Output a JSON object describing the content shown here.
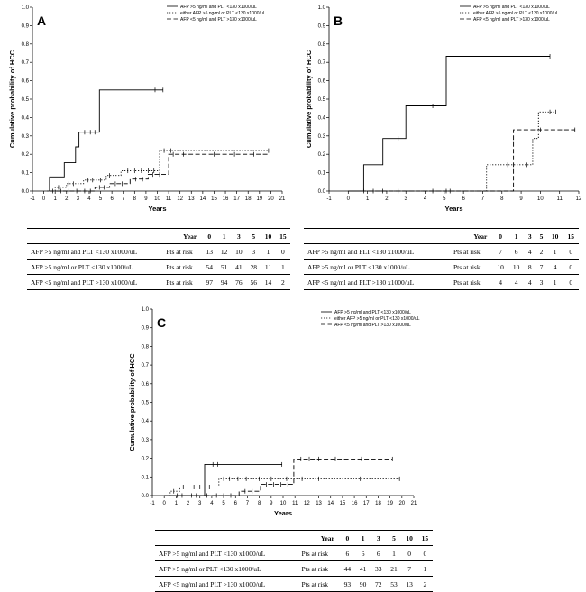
{
  "legend": [
    "AFP >5 ng/ml and PLT <130 x1000/uL",
    "either AFP >5 ng/ml or PLT <130 x1000/uL",
    "AFP <5 ng/ml and PLT >130 x1000/uL"
  ],
  "risk_labels": {
    "year": "Year",
    "pts": "Pts at risk"
  },
  "chart_data": [
    {
      "id": "A",
      "type": "line",
      "title": "A",
      "ylabel": "Cumulative probability of HCC",
      "xlabel": "Years",
      "xlim": [
        -1,
        21
      ],
      "ylim": [
        0,
        1
      ],
      "xticks": [
        -1,
        0,
        1,
        2,
        3,
        4,
        5,
        6,
        7,
        8,
        9,
        10,
        11,
        12,
        13,
        14,
        15,
        16,
        17,
        18,
        19,
        20,
        21
      ],
      "yticks": [
        "0.0",
        "0.1",
        "0.2",
        "0.3",
        "0.4",
        "0.5",
        "0.6",
        "0.7",
        "0.8",
        "0.9",
        "1.0"
      ],
      "series": [
        {
          "name": "AFP >5 ng/ml and PLT <130 x1000/uL",
          "style": "solid",
          "steps": [
            [
              0.5,
              0
            ],
            [
              0.5,
              0.077
            ],
            [
              1.8,
              0.077
            ],
            [
              1.8,
              0.154
            ],
            [
              2.8,
              0.154
            ],
            [
              2.8,
              0.24
            ],
            [
              3.1,
              0.24
            ],
            [
              3.1,
              0.32
            ],
            [
              4.9,
              0.32
            ],
            [
              4.9,
              0.55
            ],
            [
              10.5,
              0.55
            ]
          ],
          "censor": [
            [
              3.6,
              0.32
            ],
            [
              4.1,
              0.32
            ],
            [
              4.5,
              0.32
            ],
            [
              9.8,
              0.55
            ],
            [
              10.5,
              0.55
            ]
          ]
        },
        {
          "name": "either AFP >5 ng/ml or PLT <130 x1000/uL",
          "style": "dotted",
          "steps": [
            [
              0.3,
              0
            ],
            [
              1.0,
              0
            ],
            [
              1.0,
              0.02
            ],
            [
              2.0,
              0.02
            ],
            [
              2.0,
              0.04
            ],
            [
              3.5,
              0.04
            ],
            [
              3.5,
              0.06
            ],
            [
              5.5,
              0.06
            ],
            [
              5.5,
              0.085
            ],
            [
              6.8,
              0.085
            ],
            [
              6.8,
              0.11
            ],
            [
              10.2,
              0.11
            ],
            [
              10.2,
              0.22
            ],
            [
              19.8,
              0.22
            ]
          ],
          "censor": [
            [
              1.3,
              0.02
            ],
            [
              2.2,
              0.04
            ],
            [
              2.6,
              0.04
            ],
            [
              3.9,
              0.06
            ],
            [
              4.3,
              0.06
            ],
            [
              4.6,
              0.06
            ],
            [
              5.0,
              0.06
            ],
            [
              5.8,
              0.085
            ],
            [
              6.2,
              0.085
            ],
            [
              7.4,
              0.11
            ],
            [
              8.0,
              0.11
            ],
            [
              8.6,
              0.11
            ],
            [
              9.2,
              0.11
            ],
            [
              9.7,
              0.11
            ],
            [
              10.6,
              0.22
            ],
            [
              11.2,
              0.22
            ],
            [
              19.8,
              0.22
            ]
          ]
        },
        {
          "name": "AFP <5 ng/ml and PLT >130 x1000/uL",
          "style": "dashed",
          "steps": [
            [
              0.5,
              0
            ],
            [
              4.5,
              0
            ],
            [
              4.5,
              0.02
            ],
            [
              5.8,
              0.02
            ],
            [
              5.8,
              0.04
            ],
            [
              7.6,
              0.04
            ],
            [
              7.6,
              0.065
            ],
            [
              9.2,
              0.065
            ],
            [
              9.2,
              0.09
            ],
            [
              11.0,
              0.09
            ],
            [
              11.0,
              0.2
            ],
            [
              19.8,
              0.2
            ]
          ],
          "censor": [
            [
              0.8,
              0
            ],
            [
              1.5,
              0
            ],
            [
              2.2,
              0
            ],
            [
              2.9,
              0
            ],
            [
              3.6,
              0
            ],
            [
              4.1,
              0
            ],
            [
              4.9,
              0.02
            ],
            [
              5.3,
              0.02
            ],
            [
              6.3,
              0.04
            ],
            [
              6.9,
              0.04
            ],
            [
              8.1,
              0.065
            ],
            [
              8.7,
              0.065
            ],
            [
              9.6,
              0.09
            ],
            [
              10.2,
              0.09
            ],
            [
              11.4,
              0.2
            ],
            [
              12.3,
              0.2
            ],
            [
              15.0,
              0.2
            ],
            [
              16.8,
              0.2
            ],
            [
              18.5,
              0.2
            ]
          ]
        }
      ]
    },
    {
      "id": "B",
      "type": "line",
      "title": "B",
      "ylabel": "Cumulative probability of HCC",
      "xlabel": "Years",
      "xlim": [
        -1,
        12
      ],
      "ylim": [
        0,
        1
      ],
      "xticks": [
        -1,
        0,
        1,
        2,
        3,
        4,
        5,
        6,
        7,
        8,
        9,
        10,
        11,
        12
      ],
      "yticks": [
        "0.0",
        "0.1",
        "0.2",
        "0.3",
        "0.4",
        "0.5",
        "0.6",
        "0.7",
        "0.8",
        "0.9",
        "1.0"
      ],
      "series": [
        {
          "name": "AFP >5 ng/ml and PLT <130 x1000/uL",
          "style": "solid",
          "steps": [
            [
              0,
              0
            ],
            [
              0.8,
              0
            ],
            [
              0.8,
              0.143
            ],
            [
              1.8,
              0.143
            ],
            [
              1.8,
              0.286
            ],
            [
              3.0,
              0.286
            ],
            [
              3.0,
              0.463
            ],
            [
              5.1,
              0.463
            ],
            [
              5.1,
              0.733
            ],
            [
              10.5,
              0.733
            ]
          ],
          "censor": [
            [
              1.3,
              0
            ],
            [
              2.6,
              0.286
            ],
            [
              4.4,
              0.463
            ],
            [
              10.5,
              0.733
            ]
          ]
        },
        {
          "name": "either AFP >5 ng/ml or PLT <130 x1000/uL",
          "style": "dotted",
          "steps": [
            [
              0,
              0
            ],
            [
              7.2,
              0
            ],
            [
              7.2,
              0.143
            ],
            [
              9.6,
              0.143
            ],
            [
              9.6,
              0.286
            ],
            [
              9.9,
              0.286
            ],
            [
              9.9,
              0.43
            ],
            [
              10.8,
              0.43
            ]
          ],
          "censor": [
            [
              0.8,
              0
            ],
            [
              2.6,
              0
            ],
            [
              4.4,
              0
            ],
            [
              5.3,
              0
            ],
            [
              8.3,
              0.143
            ],
            [
              9.3,
              0.143
            ],
            [
              10.5,
              0.43
            ],
            [
              10.8,
              0.43
            ]
          ]
        },
        {
          "name": "AFP <5 ng/ml and PLT >130 x1000/uL",
          "style": "dashed",
          "steps": [
            [
              0,
              0
            ],
            [
              8.6,
              0
            ],
            [
              8.6,
              0.333
            ],
            [
              11.8,
              0.333
            ]
          ],
          "censor": [
            [
              1.8,
              0
            ],
            [
              5.1,
              0
            ],
            [
              10.0,
              0.333
            ],
            [
              11.8,
              0.333
            ]
          ]
        }
      ]
    },
    {
      "id": "C",
      "type": "line",
      "title": "C",
      "ylabel": "Cumulative probability of HCC",
      "xlabel": "Years",
      "xlim": [
        -1,
        21
      ],
      "ylim": [
        0,
        1
      ],
      "xticks": [
        -1,
        0,
        1,
        2,
        3,
        4,
        5,
        6,
        7,
        8,
        9,
        10,
        11,
        12,
        13,
        14,
        15,
        16,
        17,
        18,
        19,
        20,
        21
      ],
      "yticks": [
        "0.0",
        "0.1",
        "0.2",
        "0.3",
        "0.4",
        "0.5",
        "0.6",
        "0.7",
        "0.8",
        "0.9",
        "1.0"
      ],
      "series": [
        {
          "name": "AFP >5 ng/ml and PLT <130 x1000/uL",
          "style": "solid",
          "steps": [
            [
              0,
              0
            ],
            [
              3.4,
              0
            ],
            [
              3.4,
              0.167
            ],
            [
              9.9,
              0.167
            ]
          ],
          "censor": [
            [
              1.1,
              0
            ],
            [
              2.3,
              0
            ],
            [
              4.1,
              0.167
            ],
            [
              4.5,
              0.167
            ],
            [
              9.9,
              0.167
            ]
          ]
        },
        {
          "name": "either AFP >5 ng/ml or PLT <130 x1000/uL",
          "style": "dotted",
          "steps": [
            [
              0,
              0
            ],
            [
              0.5,
              0
            ],
            [
              0.5,
              0.023
            ],
            [
              1.3,
              0.023
            ],
            [
              1.3,
              0.046
            ],
            [
              4.6,
              0.046
            ],
            [
              4.6,
              0.09
            ],
            [
              19.8,
              0.09
            ]
          ],
          "censor": [
            [
              0.8,
              0.023
            ],
            [
              1.6,
              0.046
            ],
            [
              2.0,
              0.046
            ],
            [
              2.5,
              0.046
            ],
            [
              3.0,
              0.046
            ],
            [
              3.8,
              0.046
            ],
            [
              5.0,
              0.09
            ],
            [
              5.5,
              0.09
            ],
            [
              6.2,
              0.09
            ],
            [
              6.9,
              0.09
            ],
            [
              8.0,
              0.09
            ],
            [
              9.0,
              0.09
            ],
            [
              10.3,
              0.09
            ],
            [
              11.6,
              0.09
            ],
            [
              13.0,
              0.09
            ],
            [
              16.5,
              0.09
            ],
            [
              19.8,
              0.09
            ]
          ]
        },
        {
          "name": "AFP <5 ng/ml and PLT >130 x1000/uL",
          "style": "dashed",
          "steps": [
            [
              0,
              0
            ],
            [
              6.3,
              0
            ],
            [
              6.3,
              0.023
            ],
            [
              8.1,
              0.023
            ],
            [
              8.1,
              0.06
            ],
            [
              10.9,
              0.06
            ],
            [
              10.9,
              0.196
            ],
            [
              19.2,
              0.196
            ]
          ],
          "censor": [
            [
              0.4,
              0
            ],
            [
              1.5,
              0
            ],
            [
              2.7,
              0
            ],
            [
              3.6,
              0
            ],
            [
              4.4,
              0
            ],
            [
              5.0,
              0
            ],
            [
              5.6,
              0
            ],
            [
              6.8,
              0.023
            ],
            [
              7.4,
              0.023
            ],
            [
              8.6,
              0.06
            ],
            [
              9.2,
              0.06
            ],
            [
              9.8,
              0.06
            ],
            [
              10.4,
              0.06
            ],
            [
              11.5,
              0.196
            ],
            [
              12.2,
              0.196
            ],
            [
              13.0,
              0.196
            ],
            [
              14.4,
              0.196
            ],
            [
              16.6,
              0.196
            ],
            [
              19.2,
              0.196
            ]
          ]
        }
      ]
    }
  ],
  "risk_tables": [
    {
      "years": [
        "0",
        "1",
        "3",
        "5",
        "10",
        "15"
      ],
      "rows": [
        {
          "label": "AFP >5 ng/ml and PLT <130 x1000/uL",
          "values": [
            "13",
            "12",
            "10",
            "3",
            "1",
            "0"
          ]
        },
        {
          "label": "AFP >5 ng/ml or PLT <130 x1000/uL",
          "values": [
            "54",
            "51",
            "41",
            "28",
            "11",
            "1"
          ]
        },
        {
          "label": "AFP <5 ng/ml and PLT >130 x1000/uL",
          "values": [
            "97",
            "94",
            "76",
            "56",
            "14",
            "2"
          ]
        }
      ]
    },
    {
      "years": [
        "0",
        "1",
        "3",
        "5",
        "10",
        "15"
      ],
      "rows": [
        {
          "label": "AFP >5 ng/ml and PLT <130 x1000/uL",
          "values": [
            "7",
            "6",
            "4",
            "2",
            "1",
            "0"
          ]
        },
        {
          "label": "AFP >5 ng/ml or PLT <130 x1000/uL",
          "values": [
            "10",
            "10",
            "8",
            "7",
            "4",
            "0"
          ]
        },
        {
          "label": "AFP <5 ng/ml and PLT >130 x1000/uL",
          "values": [
            "4",
            "4",
            "4",
            "3",
            "1",
            "0"
          ]
        }
      ]
    },
    {
      "years": [
        "0",
        "1",
        "3",
        "5",
        "10",
        "15"
      ],
      "rows": [
        {
          "label": "AFP >5 ng/ml and PLT <130 x1000/uL",
          "values": [
            "6",
            "6",
            "6",
            "1",
            "0",
            "0"
          ]
        },
        {
          "label": "AFP >5 ng/ml or PLT <130 x1000/uL",
          "values": [
            "44",
            "41",
            "33",
            "21",
            "7",
            "1"
          ]
        },
        {
          "label": "AFP <5 ng/ml and PLT >130 x1000/uL",
          "values": [
            "93",
            "90",
            "72",
            "53",
            "13",
            "2"
          ]
        }
      ]
    }
  ]
}
